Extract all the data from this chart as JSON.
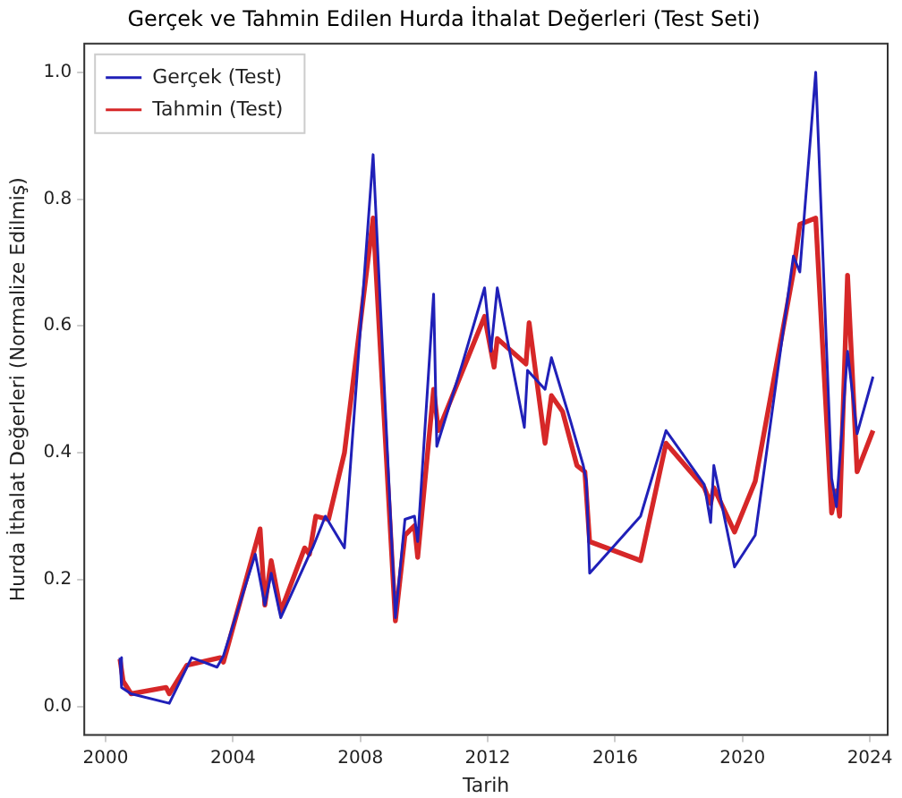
{
  "chart_data": {
    "type": "line",
    "title": "Gerçek ve Tahmin Edilen Hurda İthalat Değerleri (Test Seti)",
    "xlabel": "Tarih",
    "ylabel": "Hurda İthalat Değerleri (Normalize Edilmiş)",
    "xlim": [
      1999.33,
      2024.56
    ],
    "xticks": [
      2000,
      2004,
      2008,
      2012,
      2016,
      2020,
      2024
    ],
    "ylim": [
      -0.045,
      1.045
    ],
    "yticks": [
      {
        "value": 0,
        "label": "0.0"
      },
      0.2,
      0.4,
      0.6,
      0.8,
      {
        "value": 1,
        "label": "1.0"
      }
    ],
    "grid": false,
    "legend": "top left",
    "marker": "none",
    "line_style": "solid",
    "series": [
      {
        "name": "Gerçek (Test)",
        "color": "#2020b8",
        "x": [
          2000.45,
          2000.5,
          2000.8,
          2002.0,
          2002.7,
          2003.5,
          2003.7,
          2004.7,
          2005.0,
          2005.2,
          2005.5,
          2006.4,
          2006.5,
          2006.9,
          2007.5,
          2008.4,
          2009.1,
          2009.4,
          2009.7,
          2009.8,
          2010.3,
          2010.4,
          2011.2,
          2011.9,
          2012.1,
          2012.3,
          2013.15,
          2013.25,
          2013.8,
          2014.0,
          2014.6,
          2015.0,
          2015.1,
          2015.2,
          2016.8,
          2017.6,
          2018.8,
          2019.0,
          2019.1,
          2019.75,
          2020.4,
          2021.6,
          2021.8,
          2022.3,
          2022.8,
          2022.95,
          2023.3,
          2023.6,
          2024.1
        ],
        "values": [
          0.077,
          0.03,
          0.02,
          0.005,
          0.077,
          0.062,
          0.08,
          0.24,
          0.16,
          0.21,
          0.14,
          0.24,
          0.25,
          0.3,
          0.25,
          0.87,
          0.14,
          0.295,
          0.3,
          0.26,
          0.65,
          0.41,
          0.54,
          0.66,
          0.56,
          0.66,
          0.44,
          0.53,
          0.5,
          0.55,
          0.45,
          0.38,
          0.355,
          0.21,
          0.3,
          0.435,
          0.35,
          0.29,
          0.38,
          0.22,
          0.27,
          0.71,
          0.685,
          1.0,
          0.36,
          0.315,
          0.56,
          0.43,
          0.52
        ]
      },
      {
        "name": "Tahmin (Test)",
        "color": "#d62728",
        "x": [
          2000.45,
          2000.55,
          2000.8,
          2001.9,
          2002.0,
          2002.55,
          2003.6,
          2003.7,
          2004.85,
          2005.0,
          2005.2,
          2005.5,
          2006.25,
          2006.4,
          2006.6,
          2007.0,
          2007.5,
          2008.4,
          2009.1,
          2009.4,
          2009.7,
          2009.8,
          2010.3,
          2010.45,
          2011.9,
          2012.2,
          2012.3,
          2013.2,
          2013.3,
          2013.8,
          2014.0,
          2014.35,
          2014.8,
          2015.05,
          2015.2,
          2016.8,
          2017.6,
          2018.8,
          2019.0,
          2019.1,
          2019.75,
          2020.4,
          2021.6,
          2021.8,
          2022.3,
          2022.8,
          2022.95,
          2023.05,
          2023.3,
          2023.6,
          2024.1
        ],
        "values": [
          0.075,
          0.04,
          0.02,
          0.03,
          0.02,
          0.065,
          0.077,
          0.07,
          0.28,
          0.16,
          0.23,
          0.15,
          0.25,
          0.24,
          0.3,
          0.295,
          0.4,
          0.77,
          0.135,
          0.27,
          0.285,
          0.235,
          0.5,
          0.435,
          0.615,
          0.535,
          0.58,
          0.54,
          0.605,
          0.415,
          0.49,
          0.465,
          0.38,
          0.37,
          0.26,
          0.23,
          0.415,
          0.345,
          0.32,
          0.345,
          0.275,
          0.355,
          0.685,
          0.76,
          0.77,
          0.305,
          0.34,
          0.3,
          0.68,
          0.37,
          0.435
        ]
      }
    ]
  }
}
